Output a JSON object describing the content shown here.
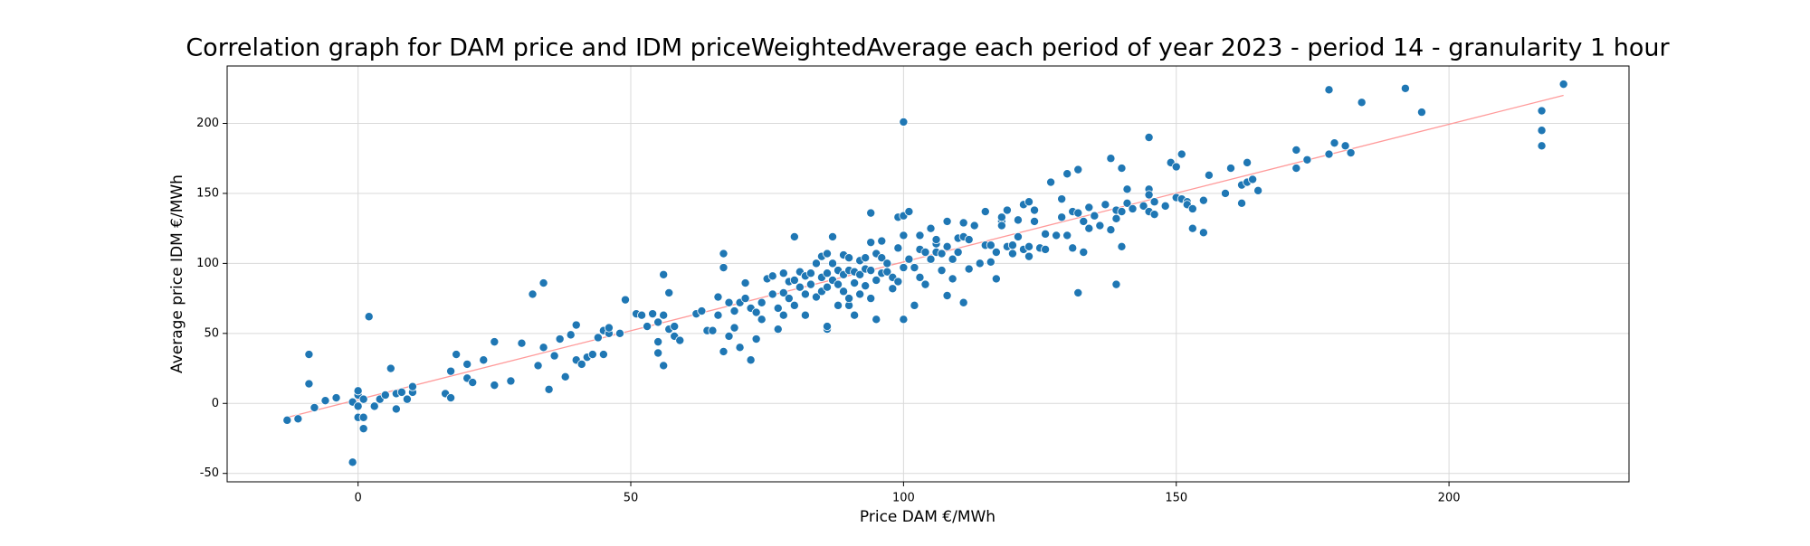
{
  "chart_data": {
    "type": "scatter",
    "title": "Correlation graph for DAM price and IDM priceWeightedAverage each period of year 2023 - period 14 - granularity 1 hour",
    "x_label": "Price DAM €/MWh",
    "y_label": "Average price IDM €/MWh",
    "color": "#1f77b4",
    "grid": true,
    "xlim": [
      -24,
      233
    ],
    "ylim": [
      -56,
      241
    ],
    "xticks": [
      0,
      50,
      100,
      150,
      200
    ],
    "yticks": [
      -50,
      0,
      50,
      100,
      150,
      200
    ],
    "x": [
      -13,
      -11,
      -9,
      -9,
      -8,
      -6,
      -4,
      -1,
      -1,
      0,
      0,
      0,
      0,
      1,
      1,
      1,
      2,
      3,
      4,
      5,
      6,
      7,
      7,
      8,
      9,
      10,
      10,
      16,
      17,
      17,
      18,
      20,
      20,
      21,
      23,
      25,
      25,
      28,
      30,
      32,
      33,
      34,
      34,
      35,
      36,
      37,
      38,
      39,
      40,
      40,
      41,
      42,
      43,
      44,
      45,
      45,
      46,
      46,
      48,
      49,
      51,
      52,
      53,
      54,
      55,
      55,
      55,
      56,
      56,
      56,
      57,
      57,
      58,
      58,
      59,
      62,
      63,
      64,
      65,
      66,
      66,
      67,
      67,
      67,
      68,
      68,
      69,
      69,
      70,
      70,
      71,
      71,
      72,
      72,
      73,
      73,
      74,
      74,
      75,
      76,
      76,
      77,
      77,
      78,
      78,
      78,
      79,
      79,
      80,
      80,
      80,
      81,
      81,
      82,
      82,
      82,
      83,
      83,
      84,
      84,
      85,
      85,
      85,
      86,
      86,
      86,
      86,
      86,
      87,
      87,
      87,
      88,
      88,
      88,
      89,
      89,
      89,
      90,
      90,
      90,
      90,
      91,
      91,
      91,
      92,
      92,
      92,
      93,
      93,
      93,
      94,
      94,
      94,
      94,
      95,
      95,
      95,
      96,
      96,
      96,
      97,
      97,
      98,
      98,
      99,
      99,
      99,
      100,
      100,
      100,
      100,
      100,
      101,
      101,
      102,
      102,
      103,
      103,
      103,
      104,
      104,
      105,
      105,
      106,
      106,
      106,
      107,
      107,
      108,
      108,
      108,
      109,
      109,
      110,
      110,
      111,
      111,
      111,
      112,
      112,
      113,
      114,
      115,
      115,
      116,
      116,
      117,
      117,
      118,
      118,
      118,
      119,
      119,
      120,
      120,
      121,
      121,
      122,
      122,
      123,
      123,
      123,
      124,
      124,
      125,
      126,
      126,
      127,
      128,
      129,
      129,
      130,
      130,
      131,
      131,
      132,
      132,
      132,
      133,
      133,
      134,
      134,
      135,
      136,
      137,
      138,
      138,
      139,
      139,
      139,
      140,
      140,
      140,
      141,
      141,
      142,
      144,
      145,
      145,
      145,
      145,
      146,
      146,
      148,
      149,
      150,
      150,
      151,
      151,
      152,
      152,
      153,
      153,
      155,
      155,
      156,
      159,
      160,
      162,
      162,
      163,
      163,
      164,
      165,
      172,
      172,
      174,
      178,
      178,
      179,
      181,
      182,
      184,
      192,
      195,
      217,
      217,
      217,
      221
    ],
    "values": [
      -12,
      -11,
      35,
      14,
      -3,
      2,
      4,
      -42,
      1,
      -2,
      6,
      9,
      -10,
      -10,
      -18,
      3,
      62,
      -2,
      3,
      6,
      25,
      -4,
      7,
      8,
      3,
      8,
      12,
      7,
      23,
      4,
      35,
      18,
      28,
      15,
      31,
      44,
      13,
      16,
      43,
      78,
      27,
      40,
      86,
      10,
      34,
      46,
      19,
      49,
      31,
      56,
      28,
      33,
      35,
      47,
      52,
      35,
      50,
      54,
      50,
      74,
      64,
      63,
      55,
      64,
      58,
      44,
      36,
      27,
      63,
      92,
      79,
      53,
      48,
      55,
      45,
      64,
      66,
      52,
      52,
      76,
      63,
      107,
      37,
      97,
      48,
      72,
      54,
      66,
      72,
      40,
      75,
      86,
      31,
      68,
      65,
      46,
      72,
      60,
      89,
      78,
      91,
      53,
      68,
      79,
      93,
      63,
      87,
      75,
      70,
      119,
      88,
      94,
      83,
      78,
      91,
      63,
      93,
      85,
      100,
      76,
      105,
      90,
      80,
      107,
      53,
      55,
      93,
      83,
      119,
      100,
      88,
      95,
      70,
      85,
      106,
      92,
      80,
      104,
      95,
      70,
      75,
      94,
      86,
      63,
      78,
      92,
      102,
      84,
      96,
      104,
      136,
      115,
      95,
      75,
      88,
      107,
      60,
      93,
      104,
      116,
      100,
      94,
      90,
      82,
      133,
      87,
      111,
      60,
      134,
      201,
      120,
      97,
      137,
      103,
      97,
      70,
      120,
      90,
      110,
      85,
      108,
      125,
      103,
      114,
      108,
      117,
      95,
      107,
      130,
      77,
      112,
      103,
      89,
      118,
      108,
      129,
      119,
      72,
      117,
      96,
      127,
      100,
      137,
      113,
      113,
      101,
      108,
      89,
      130,
      133,
      127,
      138,
      112,
      113,
      107,
      131,
      119,
      110,
      142,
      144,
      112,
      105,
      130,
      138,
      111,
      110,
      121,
      158,
      120,
      146,
      133,
      164,
      120,
      137,
      111,
      167,
      136,
      79,
      108,
      130,
      140,
      125,
      134,
      127,
      142,
      175,
      124,
      132,
      85,
      138,
      168,
      112,
      137,
      153,
      143,
      139,
      141,
      190,
      153,
      149,
      137,
      144,
      135,
      141,
      172,
      169,
      147,
      178,
      146,
      144,
      142,
      139,
      125,
      145,
      122,
      163,
      150,
      168,
      143,
      156,
      172,
      158,
      160,
      152,
      168,
      181,
      174,
      224,
      178,
      186,
      184,
      179,
      215,
      225,
      208,
      184,
      195,
      209,
      228
    ],
    "trendline": {
      "x": [
        -13,
        221
      ],
      "values": [
        -10,
        220
      ],
      "color": "#ff9a9a"
    }
  }
}
